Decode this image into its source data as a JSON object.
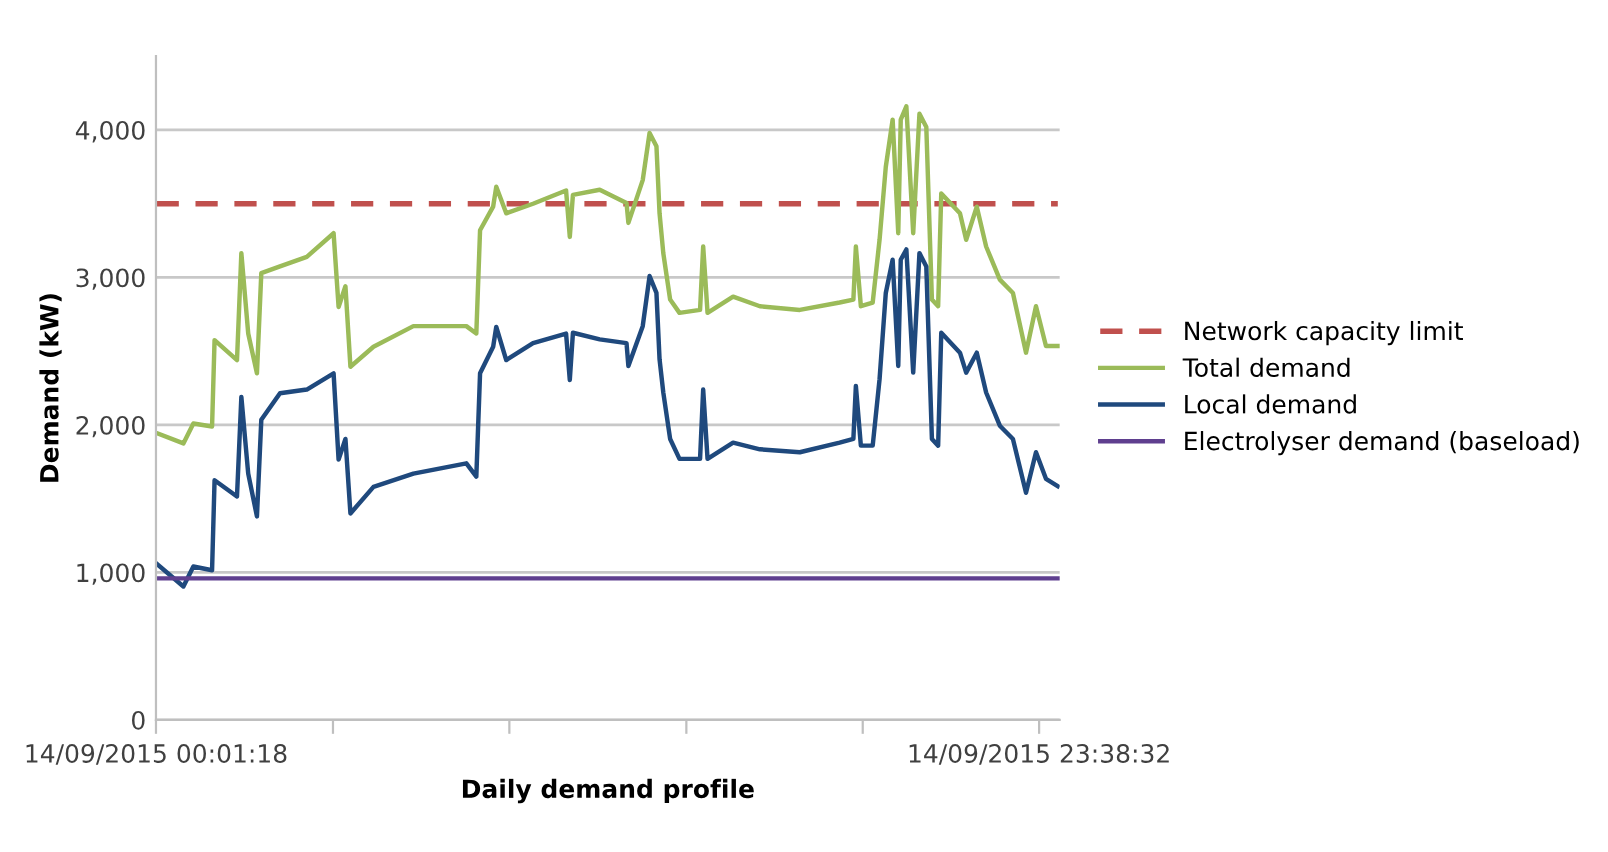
{
  "chart_data": {
    "type": "line",
    "xlabel": "Daily demand profile",
    "ylabel": "Demand (kW)",
    "xlim": [
      "2015-09-14T00:01",
      "2015-09-15T00:11"
    ],
    "xticks": [
      {
        "value": "2015-09-14T00:01",
        "label": "14/09/2015 00:01:18"
      },
      {
        "value": "2015-09-14T04:45",
        "label": null
      },
      {
        "value": "2015-09-14T09:28",
        "label": null
      },
      {
        "value": "2015-09-14T14:12",
        "label": null
      },
      {
        "value": "2015-09-14T18:55",
        "label": null
      },
      {
        "value": "2015-09-14T23:38",
        "label": "14/09/2015 23:38:32"
      }
    ],
    "x": [
      "2015-09-14T00:02",
      "2015-09-14T00:45",
      "2015-09-14T01:01",
      "2015-09-14T01:31",
      "2015-09-14T01:35",
      "2015-09-14T02:11",
      "2015-09-14T02:18",
      "2015-09-14T02:29",
      "2015-09-14T02:43",
      "2015-09-14T02:50",
      "2015-09-14T03:20",
      "2015-09-14T04:03",
      "2015-09-14T04:46",
      "2015-09-14T04:54",
      "2015-09-14T05:05",
      "2015-09-14T05:13",
      "2015-09-14T05:50",
      "2015-09-14T06:54",
      "2015-09-14T08:19",
      "2015-09-14T08:35",
      "2015-09-14T08:41",
      "2015-09-14T09:02",
      "2015-09-14T09:07",
      "2015-09-14T09:23",
      "2015-09-14T10:06",
      "2015-09-14T10:59",
      "2015-09-14T11:05",
      "2015-09-14T11:10",
      "2015-09-14T11:53",
      "2015-09-14T12:36",
      "2015-09-14T12:39",
      "2015-09-14T13:02",
      "2015-09-14T13:13",
      "2015-09-14T13:24",
      "2015-09-14T13:29",
      "2015-09-14T13:35",
      "2015-09-14T13:46",
      "2015-09-14T14:01",
      "2015-09-14T14:34",
      "2015-09-14T14:39",
      "2015-09-14T14:46",
      "2015-09-14T15:27",
      "2015-09-14T16:10",
      "2015-09-14T17:14",
      "2015-09-14T18:18",
      "2015-09-14T18:40",
      "2015-09-14T18:44",
      "2015-09-14T18:52",
      "2015-09-14T19:11",
      "2015-09-14T19:22",
      "2015-09-14T19:32",
      "2015-09-14T19:43",
      "2015-09-14T19:52",
      "2015-09-14T19:56",
      "2015-09-14T20:05",
      "2015-09-14T20:16",
      "2015-09-14T20:26",
      "2015-09-14T20:37",
      "2015-09-14T20:46",
      "2015-09-14T20:56",
      "2015-09-14T21:01",
      "2015-09-14T21:31",
      "2015-09-14T21:41",
      "2015-09-14T21:58",
      "2015-09-14T22:13",
      "2015-09-14T22:35",
      "2015-09-14T22:56",
      "2015-09-14T23:17",
      "2015-09-14T23:33",
      "2015-09-14T23:49",
      "2015-09-15T00:08"
    ],
    "ylim": [
      0,
      4500
    ],
    "yticks": [
      0,
      {
        "value": 1000,
        "label": "1,000"
      },
      {
        "value": 2000,
        "label": "2,000"
      },
      {
        "value": 3000,
        "label": "3,000"
      },
      {
        "value": 4000,
        "label": "4,000"
      }
    ],
    "grid": "y",
    "legend": "right",
    "marker": "none",
    "series": [
      {
        "name": "Network capacity limit",
        "color": "#c0504d",
        "line_style": "dashed",
        "x": [
          "2015-09-14T00:02",
          "2015-09-15T00:08"
        ],
        "values": [
          3500,
          3500
        ]
      },
      {
        "name": "Total demand",
        "color": "#9bbb59",
        "line_style": "solid",
        "values": [
          1945,
          1875,
          2010,
          1990,
          2575,
          2440,
          3165,
          2620,
          2350,
          3030,
          3075,
          3140,
          3300,
          2800,
          2940,
          2395,
          2530,
          2670,
          2670,
          2620,
          3320,
          3480,
          3615,
          3435,
          3500,
          3590,
          3275,
          3560,
          3595,
          3505,
          3370,
          3660,
          3980,
          3890,
          3435,
          3165,
          2850,
          2760,
          2780,
          3210,
          2760,
          2870,
          2805,
          2780,
          2830,
          2850,
          3210,
          2805,
          2830,
          3255,
          3750,
          4070,
          3300,
          4070,
          4160,
          3300,
          4110,
          4020,
          2850,
          2805,
          3570,
          3435,
          3255,
          3480,
          3210,
          2985,
          2895,
          2490,
          2805,
          2535,
          2535
        ]
      },
      {
        "name": "Local demand",
        "color": "#1f497d",
        "line_style": "solid",
        "values": [
          1060,
          905,
          1040,
          1015,
          1625,
          1515,
          2190,
          1670,
          1380,
          2035,
          2215,
          2240,
          2350,
          1765,
          1905,
          1400,
          1580,
          1670,
          1740,
          1650,
          2350,
          2530,
          2665,
          2440,
          2555,
          2620,
          2305,
          2625,
          2580,
          2555,
          2400,
          2670,
          3010,
          2895,
          2445,
          2220,
          1905,
          1770,
          1770,
          2240,
          1770,
          1880,
          1835,
          1815,
          1880,
          1905,
          2265,
          1860,
          1860,
          2310,
          2895,
          3120,
          2400,
          3120,
          3190,
          2355,
          3165,
          3075,
          1905,
          1860,
          2625,
          2490,
          2355,
          2490,
          2220,
          1995,
          1905,
          1540,
          1815,
          1635,
          1585
        ]
      },
      {
        "name": "Electrolyser demand (baseload)",
        "color": "#5f3f8f",
        "line_style": "solid",
        "x": [
          "2015-09-14T00:02",
          "2015-09-15T00:08"
        ],
        "values": [
          960,
          960
        ]
      }
    ]
  }
}
